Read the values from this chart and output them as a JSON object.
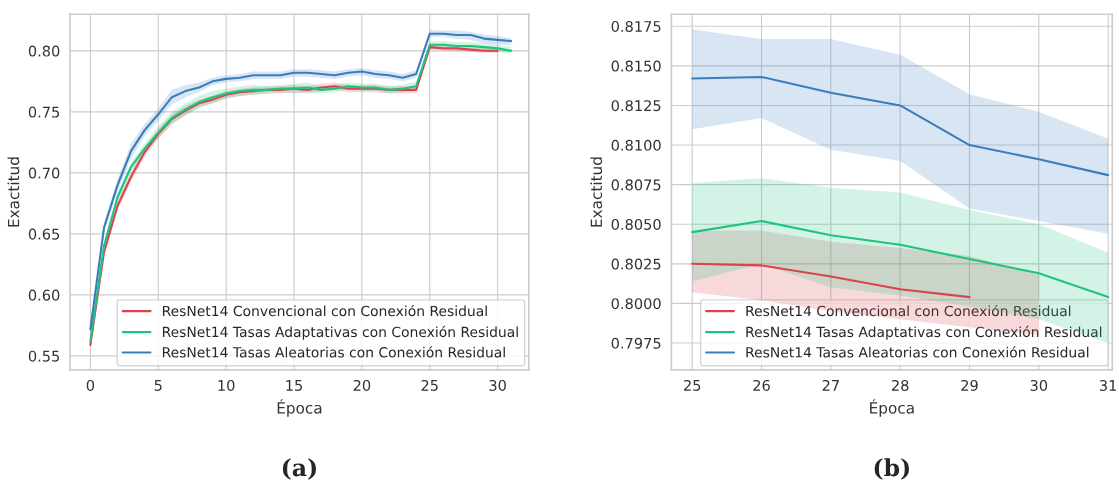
{
  "chart_data": [
    {
      "type": "line",
      "xlabel": "Época",
      "ylabel": "Exactitud",
      "annotations": [
        "(a)"
      ],
      "grid": true,
      "legend": "bottom right",
      "xlim": [
        -1.5,
        32.3
      ],
      "ylim": [
        0.5385,
        0.83
      ],
      "xticks": [
        0,
        5,
        10,
        15,
        20,
        25,
        30
      ],
      "yticks": [
        0.55,
        {
          "value": 0.6,
          "label": "0.60"
        },
        0.65,
        {
          "value": 0.7,
          "label": "0.70"
        },
        0.75,
        {
          "value": 0.8,
          "label": "0.80"
        }
      ],
      "series": [
        {
          "name": "ResNet14 Convencional con Conexión Residual",
          "color": "#d9434d",
          "x": [
            0,
            1,
            2,
            3,
            4,
            5,
            6,
            7,
            8,
            9,
            10,
            11,
            12,
            13,
            14,
            15,
            16,
            17,
            18,
            19,
            20,
            21,
            22,
            23,
            24,
            25,
            26,
            27,
            28,
            29,
            30
          ],
          "values": [
            0.559,
            0.635,
            0.673,
            0.697,
            0.717,
            0.732,
            0.744,
            0.751,
            0.757,
            0.76,
            0.764,
            0.766,
            0.767,
            0.768,
            0.768,
            0.769,
            0.768,
            0.77,
            0.771,
            0.769,
            0.769,
            0.769,
            0.768,
            0.768,
            0.768,
            0.803,
            0.802,
            0.802,
            0.801,
            0.8,
            0.8
          ],
          "lower": [
            0.556,
            0.631,
            0.669,
            0.693,
            0.713,
            0.728,
            0.74,
            0.747,
            0.754,
            0.757,
            0.761,
            0.763,
            0.764,
            0.765,
            0.765,
            0.766,
            0.765,
            0.767,
            0.768,
            0.766,
            0.766,
            0.766,
            0.765,
            0.765,
            0.765,
            0.8007,
            0.8002,
            0.7995,
            0.799,
            0.7985,
            0.798
          ],
          "upper": [
            0.562,
            0.639,
            0.677,
            0.701,
            0.721,
            0.736,
            0.748,
            0.755,
            0.76,
            0.763,
            0.767,
            0.769,
            0.77,
            0.771,
            0.771,
            0.772,
            0.771,
            0.773,
            0.774,
            0.772,
            0.772,
            0.772,
            0.771,
            0.771,
            0.771,
            0.8046,
            0.8046,
            0.8039,
            0.8035,
            0.803,
            0.8018
          ]
        },
        {
          "name": "ResNet14 Tasas Adaptativas con Conexión Residual",
          "color": "#1ec47e",
          "x": [
            0,
            1,
            2,
            3,
            4,
            5,
            6,
            7,
            8,
            9,
            10,
            11,
            12,
            13,
            14,
            15,
            16,
            17,
            18,
            19,
            20,
            21,
            22,
            23,
            24,
            25,
            26,
            27,
            28,
            29,
            30,
            31
          ],
          "values": [
            0.562,
            0.64,
            0.68,
            0.705,
            0.72,
            0.733,
            0.745,
            0.752,
            0.758,
            0.762,
            0.765,
            0.767,
            0.768,
            0.768,
            0.769,
            0.769,
            0.77,
            0.768,
            0.769,
            0.771,
            0.77,
            0.77,
            0.768,
            0.769,
            0.771,
            0.805,
            0.805,
            0.804,
            0.804,
            0.803,
            0.802,
            0.8
          ],
          "lower": [
            0.559,
            0.636,
            0.676,
            0.701,
            0.716,
            0.728,
            0.74,
            0.747,
            0.753,
            0.757,
            0.761,
            0.763,
            0.764,
            0.765,
            0.766,
            0.765,
            0.766,
            0.765,
            0.766,
            0.768,
            0.767,
            0.767,
            0.765,
            0.766,
            0.767,
            0.8014,
            0.8025,
            0.801,
            0.8005,
            0.7998,
            0.799,
            0.7975
          ],
          "upper": [
            0.565,
            0.644,
            0.684,
            0.709,
            0.724,
            0.738,
            0.75,
            0.757,
            0.763,
            0.767,
            0.769,
            0.771,
            0.772,
            0.771,
            0.772,
            0.773,
            0.774,
            0.771,
            0.772,
            0.774,
            0.773,
            0.773,
            0.771,
            0.772,
            0.775,
            0.8076,
            0.8079,
            0.8073,
            0.807,
            0.8059,
            0.805,
            0.8032
          ]
        },
        {
          "name": "ResNet14 Tasas Aleatorias con Conexión Residual",
          "color": "#3a7dbd",
          "x": [
            0,
            1,
            2,
            3,
            4,
            5,
            6,
            7,
            8,
            9,
            10,
            11,
            12,
            13,
            14,
            15,
            16,
            17,
            18,
            19,
            20,
            21,
            22,
            23,
            24,
            25,
            26,
            27,
            28,
            29,
            30,
            31
          ],
          "values": [
            0.572,
            0.655,
            0.69,
            0.718,
            0.735,
            0.748,
            0.762,
            0.767,
            0.77,
            0.775,
            0.777,
            0.778,
            0.78,
            0.78,
            0.78,
            0.782,
            0.782,
            0.781,
            0.78,
            0.782,
            0.783,
            0.781,
            0.78,
            0.778,
            0.781,
            0.814,
            0.814,
            0.813,
            0.813,
            0.81,
            0.809,
            0.808
          ],
          "lower": [
            0.569,
            0.651,
            0.685,
            0.712,
            0.73,
            0.743,
            0.756,
            0.762,
            0.766,
            0.772,
            0.774,
            0.775,
            0.777,
            0.777,
            0.777,
            0.779,
            0.779,
            0.778,
            0.777,
            0.779,
            0.78,
            0.778,
            0.777,
            0.775,
            0.778,
            0.811,
            0.8117,
            0.8097,
            0.809,
            0.806,
            0.8052,
            0.8044
          ],
          "upper": [
            0.575,
            0.659,
            0.695,
            0.724,
            0.74,
            0.753,
            0.768,
            0.772,
            0.774,
            0.778,
            0.78,
            0.781,
            0.783,
            0.783,
            0.783,
            0.785,
            0.785,
            0.784,
            0.783,
            0.785,
            0.786,
            0.784,
            0.783,
            0.781,
            0.784,
            0.8173,
            0.8167,
            0.8167,
            0.8157,
            0.8132,
            0.8121,
            0.8104
          ]
        }
      ]
    },
    {
      "type": "line",
      "xlabel": "Época",
      "ylabel": "Exactitud",
      "annotations": [
        "(b)"
      ],
      "grid": true,
      "legend": "bottom right",
      "xlim": [
        24.7,
        31.06
      ],
      "ylim": [
        0.7958,
        0.81826
      ],
      "xticks": [
        25,
        26,
        27,
        28,
        29,
        30,
        31
      ],
      "yticks": [
        0.7975,
        {
          "value": 0.8,
          "label": "0.8000"
        },
        0.8025,
        {
          "value": 0.805,
          "label": "0.8050"
        },
        0.8075,
        {
          "value": 0.81,
          "label": "0.8100"
        },
        0.8125,
        {
          "value": 0.815,
          "label": "0.8150"
        },
        0.8175
      ],
      "series": [
        {
          "name": "ResNet14 Convencional con Conexión Residual",
          "color": "#d9434d",
          "x": [
            25,
            26,
            27,
            28,
            29,
            30
          ],
          "values": [
            0.8025,
            0.8024,
            0.8017,
            0.8009,
            0.8004,
            null
          ],
          "lower": [
            0.8007,
            0.8002,
            0.7995,
            0.799,
            0.7985,
            0.798
          ],
          "upper": [
            0.8046,
            0.8046,
            0.8039,
            0.8035,
            0.803,
            0.8018
          ]
        },
        {
          "name": "ResNet14 Tasas Adaptativas con Conexión Residual",
          "color": "#1ec47e",
          "x": [
            25,
            26,
            27,
            28,
            29,
            30,
            31
          ],
          "values": [
            0.8045,
            0.8052,
            0.8043,
            0.8037,
            0.8028,
            0.8019,
            0.8004
          ],
          "lower": [
            0.8014,
            0.8025,
            0.801,
            0.8005,
            0.7998,
            0.799,
            0.7975
          ],
          "upper": [
            0.8076,
            0.8079,
            0.8073,
            0.807,
            0.8059,
            0.805,
            0.8032
          ]
        },
        {
          "name": "ResNet14 Tasas Aleatorias con Conexión Residual",
          "color": "#3a7dbd",
          "x": [
            25,
            26,
            27,
            28,
            29,
            30,
            31
          ],
          "values": [
            0.8142,
            0.8143,
            0.8133,
            0.8125,
            0.81,
            0.8091,
            0.8081
          ],
          "lower": [
            0.811,
            0.8117,
            0.8097,
            0.809,
            0.806,
            0.8052,
            0.8044
          ],
          "upper": [
            0.8173,
            0.8167,
            0.8167,
            0.8157,
            0.8132,
            0.8121,
            0.8104
          ]
        }
      ]
    }
  ]
}
